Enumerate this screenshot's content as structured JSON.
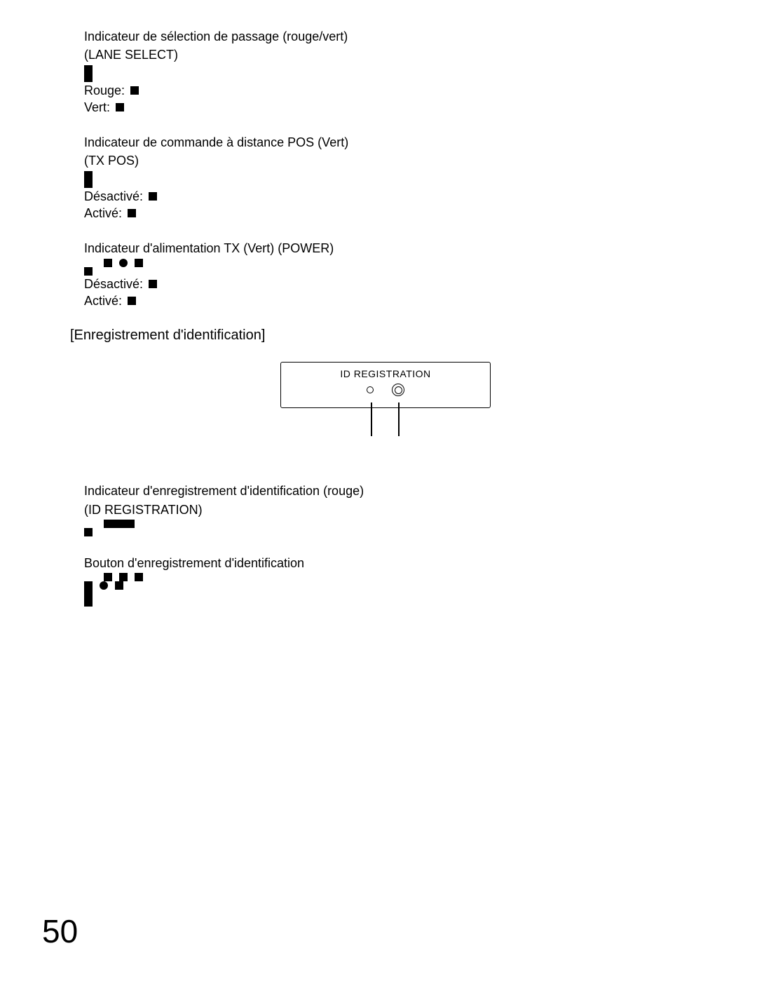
{
  "sections": [
    {
      "title": "Indicateur de sélection de passage (rouge/vert)",
      "subtitle": "(LANE SELECT)",
      "bullet_rows": [
        [
          "sq"
        ],
        [
          "sq"
        ]
      ],
      "states": [
        {
          "label": "Rouge:",
          "marker": "sq"
        },
        {
          "label": "Vert:",
          "marker": "sq"
        }
      ]
    },
    {
      "title": "Indicateur de commande à distance POS (Vert)",
      "subtitle": "(TX POS)",
      "bullet_rows": [
        [
          "sq"
        ],
        [
          "sq"
        ]
      ],
      "states": [
        {
          "label": "Désactivé:",
          "marker": "sq"
        },
        {
          "label": "Activé:",
          "marker": "sq"
        }
      ]
    },
    {
      "title": "Indicateur d'alimentation TX (Vert) (POWER)",
      "subtitle": "",
      "bullet_rows": [
        [
          "sq",
          "dot",
          "sq"
        ],
        [
          "sq"
        ]
      ],
      "indent_first": true,
      "states": [
        {
          "label": "Désactivé:",
          "marker": "sq"
        },
        {
          "label": "Activé:",
          "marker": "sq"
        }
      ]
    }
  ],
  "heading": "[Enregistrement d'identification]",
  "diagram": {
    "label": "ID REGISTRATION"
  },
  "sections2": [
    {
      "title": "Indicateur d'enregistrement d'identification (rouge)",
      "subtitle": "(ID REGISTRATION)",
      "bullet_rows": [
        [
          "bar"
        ],
        [
          "sq"
        ]
      ],
      "indent_first": true,
      "states": []
    },
    {
      "title": "Bouton d'enregistrement d'identification",
      "subtitle": "",
      "bullet_rows": [
        [
          "sq",
          "sq",
          "sq"
        ],
        [
          "sq",
          "dot",
          "sq"
        ],
        [
          "sq"
        ],
        [
          "sq"
        ]
      ],
      "indent_first": true,
      "states": []
    }
  ],
  "page_number": "50"
}
